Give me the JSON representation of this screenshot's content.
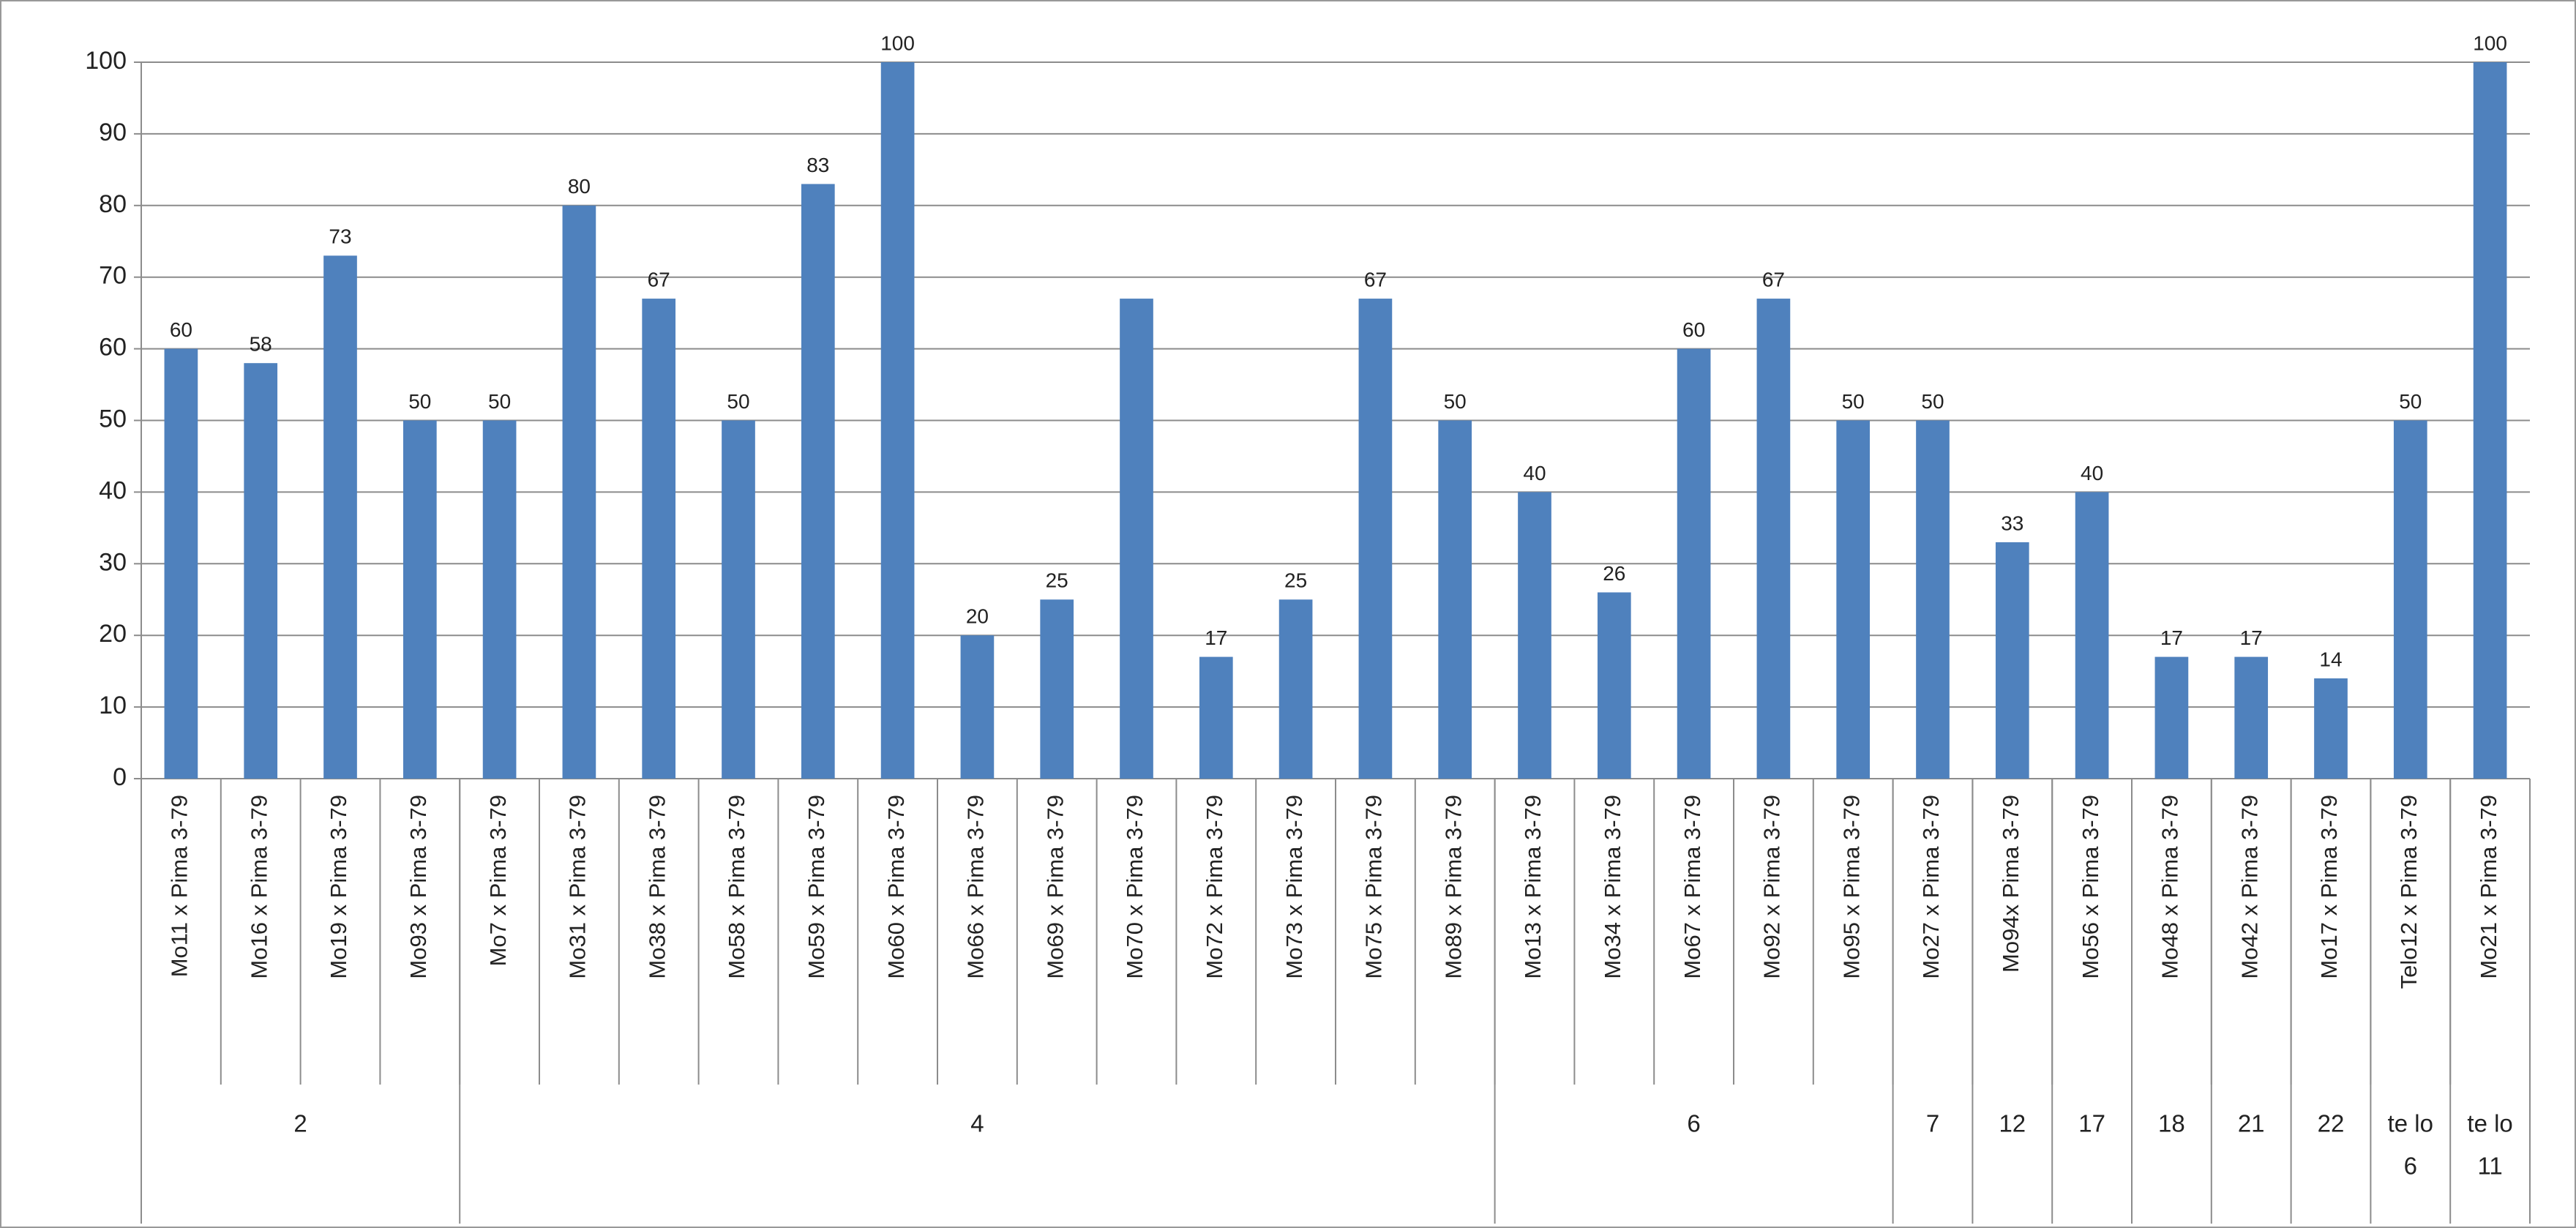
{
  "chart_data": {
    "type": "bar",
    "color": "#4f81bd",
    "grid": true,
    "ylim": [
      0,
      100
    ],
    "yticks": [
      0,
      10,
      20,
      30,
      40,
      50,
      60,
      70,
      80,
      90,
      100
    ],
    "categories": [
      "Mo11 x Pima 3-79",
      "Mo16 x Pima 3-79",
      "Mo19 x Pima 3-79",
      "Mo93 x Pima 3-79",
      "Mo7 x Pima 3-79",
      "Mo31 x Pima 3-79",
      "Mo38 x Pima 3-79",
      "Mo58 x Pima 3-79",
      "Mo59 x Pima 3-79",
      "Mo60 x Pima 3-79",
      "Mo66 x Pima 3-79",
      "Mo69 x Pima 3-79",
      "Mo70 x Pima 3-79",
      "Mo72 x Pima 3-79",
      "Mo73 x Pima 3-79",
      "Mo75 x Pima 3-79",
      "Mo89 x Pima 3-79",
      "Mo13 x Pima 3-79",
      "Mo34 x Pima 3-79",
      "Mo67 x Pima 3-79",
      "Mo92 x Pima 3-79",
      "Mo95 x Pima 3-79",
      "Mo27 x Pima 3-79",
      "Mo94x Pima 3-79",
      "Mo56 x Pima 3-79",
      "Mo48 x Pima 3-79",
      "Mo42 x Pima 3-79",
      "Mo17 x Pima 3-79",
      "Telo12 x Pima 3-79",
      "Mo21 x Pima 3-79"
    ],
    "values": [
      60,
      58,
      73,
      50,
      50,
      80,
      67,
      50,
      83,
      100,
      20,
      25,
      67,
      17,
      25,
      67,
      50,
      40,
      26,
      60,
      67,
      50,
      50,
      33,
      40,
      17,
      17,
      14,
      50,
      100
    ],
    "value_labels": [
      "60",
      "58",
      "73",
      "50",
      "50",
      "80",
      "67",
      "50",
      "83",
      "100",
      "20",
      "25",
      null,
      "17",
      "25",
      "67",
      "50",
      "40",
      "26",
      "60",
      "67",
      "50",
      "50",
      "33",
      "40",
      "17",
      "17",
      "14",
      "50",
      "100"
    ],
    "groups": [
      {
        "label": [
          "2"
        ],
        "size": 4
      },
      {
        "label": [
          "4"
        ],
        "size": 13
      },
      {
        "label": [
          "6"
        ],
        "size": 5
      },
      {
        "label": [
          "7"
        ],
        "size": 1
      },
      {
        "label": [
          "12"
        ],
        "size": 1
      },
      {
        "label": [
          "17"
        ],
        "size": 1
      },
      {
        "label": [
          "18"
        ],
        "size": 1
      },
      {
        "label": [
          "21"
        ],
        "size": 1
      },
      {
        "label": [
          "22"
        ],
        "size": 1
      },
      {
        "label": [
          "te lo",
          "6"
        ],
        "size": 1
      },
      {
        "label": [
          "te lo",
          "11"
        ],
        "size": 1
      }
    ]
  }
}
